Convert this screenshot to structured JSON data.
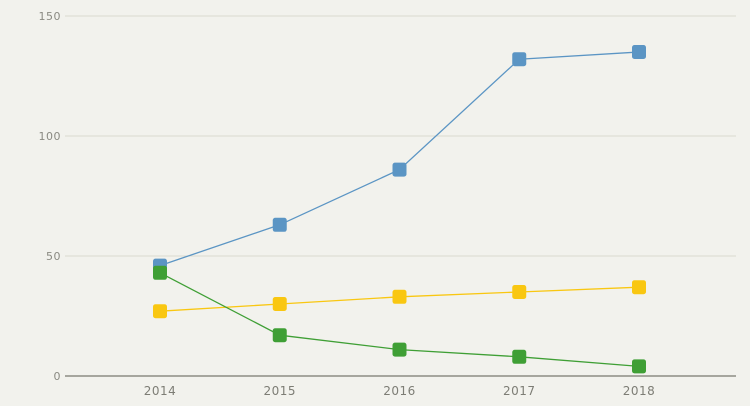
{
  "chart_data": {
    "type": "line",
    "title": "",
    "xlabel": "",
    "ylabel": "",
    "categories": [
      "2014",
      "2015",
      "2016",
      "2017",
      "2018"
    ],
    "ylim": [
      0,
      150
    ],
    "yticks": [
      0,
      50,
      100,
      150
    ],
    "grid": true,
    "series": [
      {
        "color": "#5b95c4",
        "values": [
          46,
          63,
          86,
          132,
          135
        ]
      },
      {
        "color": "#f9c711",
        "values": [
          27,
          30,
          33,
          35,
          37
        ]
      },
      {
        "color": "#3f9f35",
        "values": [
          43,
          17,
          11,
          8,
          4
        ]
      }
    ]
  }
}
